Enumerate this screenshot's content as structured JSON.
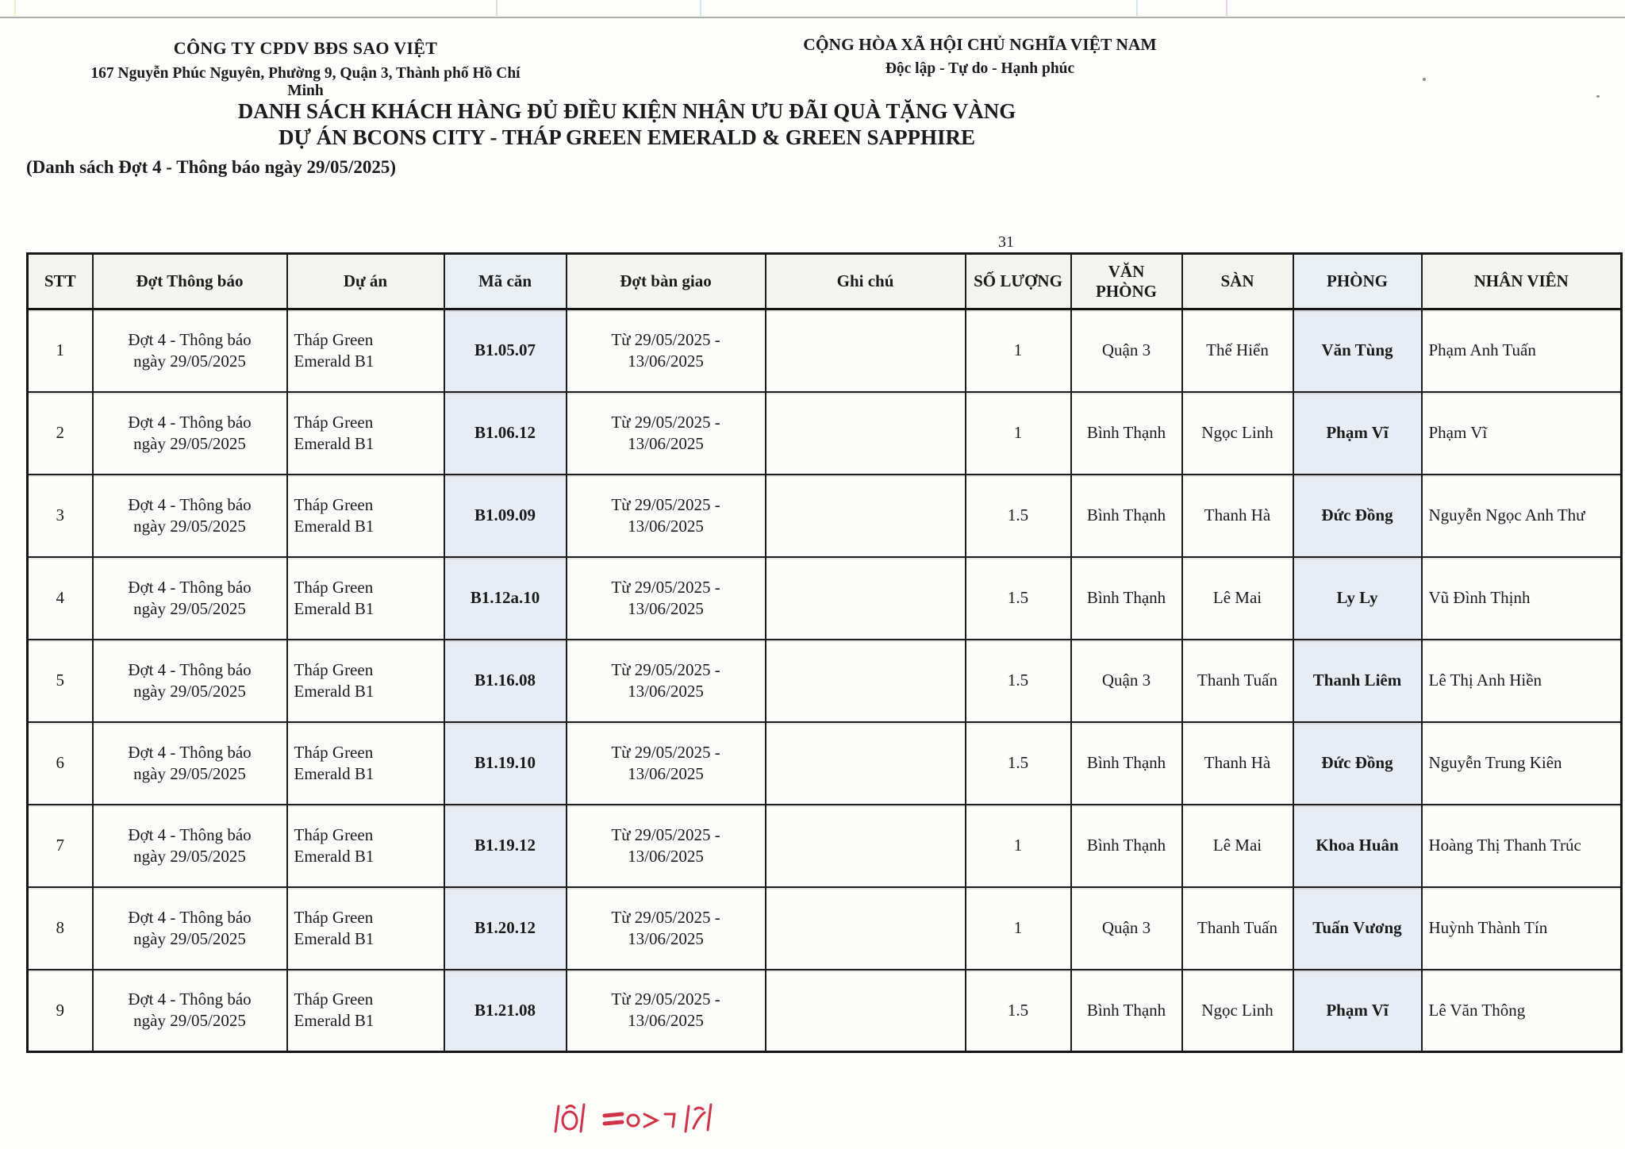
{
  "page": {
    "company": {
      "name": "CÔNG TY CPDV BĐS SAO VIỆT",
      "address": "167 Nguyễn Phúc Nguyên, Phường 9, Quận 3, Thành phố Hồ Chí Minh"
    },
    "national_header": {
      "line1": "CỘNG HÒA XÃ HỘI CHỦ NGHĨA VIỆT NAM",
      "line2": "Độc lập - Tự do - Hạnh phúc"
    },
    "title": {
      "line1": "DANH SÁCH KHÁCH HÀNG ĐỦ ĐIỀU KIỆN NHẬN ƯU ĐÃI QUÀ TẶNG VÀNG",
      "line2": "DỰ ÁN BCONS CITY - THÁP GREEN EMERALD & GREEN SAPPHIRE"
    },
    "subtitle": "(Danh sách Đợt 4 - Thông báo ngày 29/05/2025)",
    "page_note": "31"
  },
  "table": {
    "columns": [
      "STT",
      "Đợt Thông báo",
      "Dự án",
      "Mã căn",
      "Đợt bàn giao",
      "Ghi chú",
      "SỐ LƯỢNG",
      "VĂN\nPHÒNG",
      "SÀN",
      "PHÒNG",
      "NHÂN VIÊN"
    ],
    "column_keys": [
      "stt",
      "dot-thong-bao",
      "du-an",
      "ma-can",
      "dot-ban-giao",
      "ghi-chu",
      "so-luong",
      "van-phong",
      "san",
      "phong",
      "nhan-vien"
    ],
    "rows": [
      [
        "1",
        "Đợt 4 - Thông báo\nngày 29/05/2025",
        "Tháp Green\nEmerald B1",
        "B1.05.07",
        "Từ 29/05/2025 -\n13/06/2025",
        "",
        "1",
        "Quận 3",
        "Thế Hiển",
        "Văn Tùng",
        "Phạm Anh Tuấn"
      ],
      [
        "2",
        "Đợt 4 - Thông báo\nngày 29/05/2025",
        "Tháp Green\nEmerald B1",
        "B1.06.12",
        "Từ 29/05/2025 -\n13/06/2025",
        "",
        "1",
        "Bình Thạnh",
        "Ngọc Linh",
        "Phạm Vĩ",
        "Phạm Vĩ"
      ],
      [
        "3",
        "Đợt 4 - Thông báo\nngày 29/05/2025",
        "Tháp Green\nEmerald B1",
        "B1.09.09",
        "Từ 29/05/2025 -\n13/06/2025",
        "",
        "1.5",
        "Bình Thạnh",
        "Thanh Hà",
        "Đức Đồng",
        "Nguyễn Ngọc Anh Thư"
      ],
      [
        "4",
        "Đợt 4 - Thông báo\nngày 29/05/2025",
        "Tháp Green\nEmerald B1",
        "B1.12a.10",
        "Từ 29/05/2025 -\n13/06/2025",
        "",
        "1.5",
        "Bình Thạnh",
        "Lê Mai",
        "Ly Ly",
        "Vũ Đình Thịnh"
      ],
      [
        "5",
        "Đợt 4 - Thông báo\nngày 29/05/2025",
        "Tháp Green\nEmerald B1",
        "B1.16.08",
        "Từ 29/05/2025 -\n13/06/2025",
        "",
        "1.5",
        "Quận 3",
        "Thanh Tuấn",
        "Thanh Liêm",
        "Lê Thị Anh Hiền"
      ],
      [
        "6",
        "Đợt 4 - Thông báo\nngày 29/05/2025",
        "Tháp Green\nEmerald B1",
        "B1.19.10",
        "Từ 29/05/2025 -\n13/06/2025",
        "",
        "1.5",
        "Bình Thạnh",
        "Thanh Hà",
        "Đức Đồng",
        "Nguyễn Trung Kiên"
      ],
      [
        "7",
        "Đợt 4 - Thông báo\nngày 29/05/2025",
        "Tháp Green\nEmerald B1",
        "B1.19.12",
        "Từ 29/05/2025 -\n13/06/2025",
        "",
        "1",
        "Bình Thạnh",
        "Lê Mai",
        "Khoa Huân",
        "Hoàng Thị Thanh Trúc"
      ],
      [
        "8",
        "Đợt 4 - Thông báo\nngày 29/05/2025",
        "Tháp Green\nEmerald B1",
        "B1.20.12",
        "Từ 29/05/2025 -\n13/06/2025",
        "",
        "1",
        "Quận 3",
        "Thanh Tuấn",
        "Tuấn Vương",
        "Huỳnh Thành Tín"
      ],
      [
        "9",
        "Đợt 4 - Thông báo\nngày 29/05/2025",
        "Tháp Green\nEmerald B1",
        "B1.21.08",
        "Từ 29/05/2025 -\n13/06/2025",
        "",
        "1.5",
        "Bình Thạnh",
        "Ngọc Linh",
        "Phạm Vĩ",
        "Lê Văn Thông"
      ]
    ]
  },
  "colors": {
    "paper": "#fdfdfb",
    "ink": "#1b1b1b",
    "column_tint": "#e8edf5",
    "red_ink_fragment": "#cf3347"
  }
}
